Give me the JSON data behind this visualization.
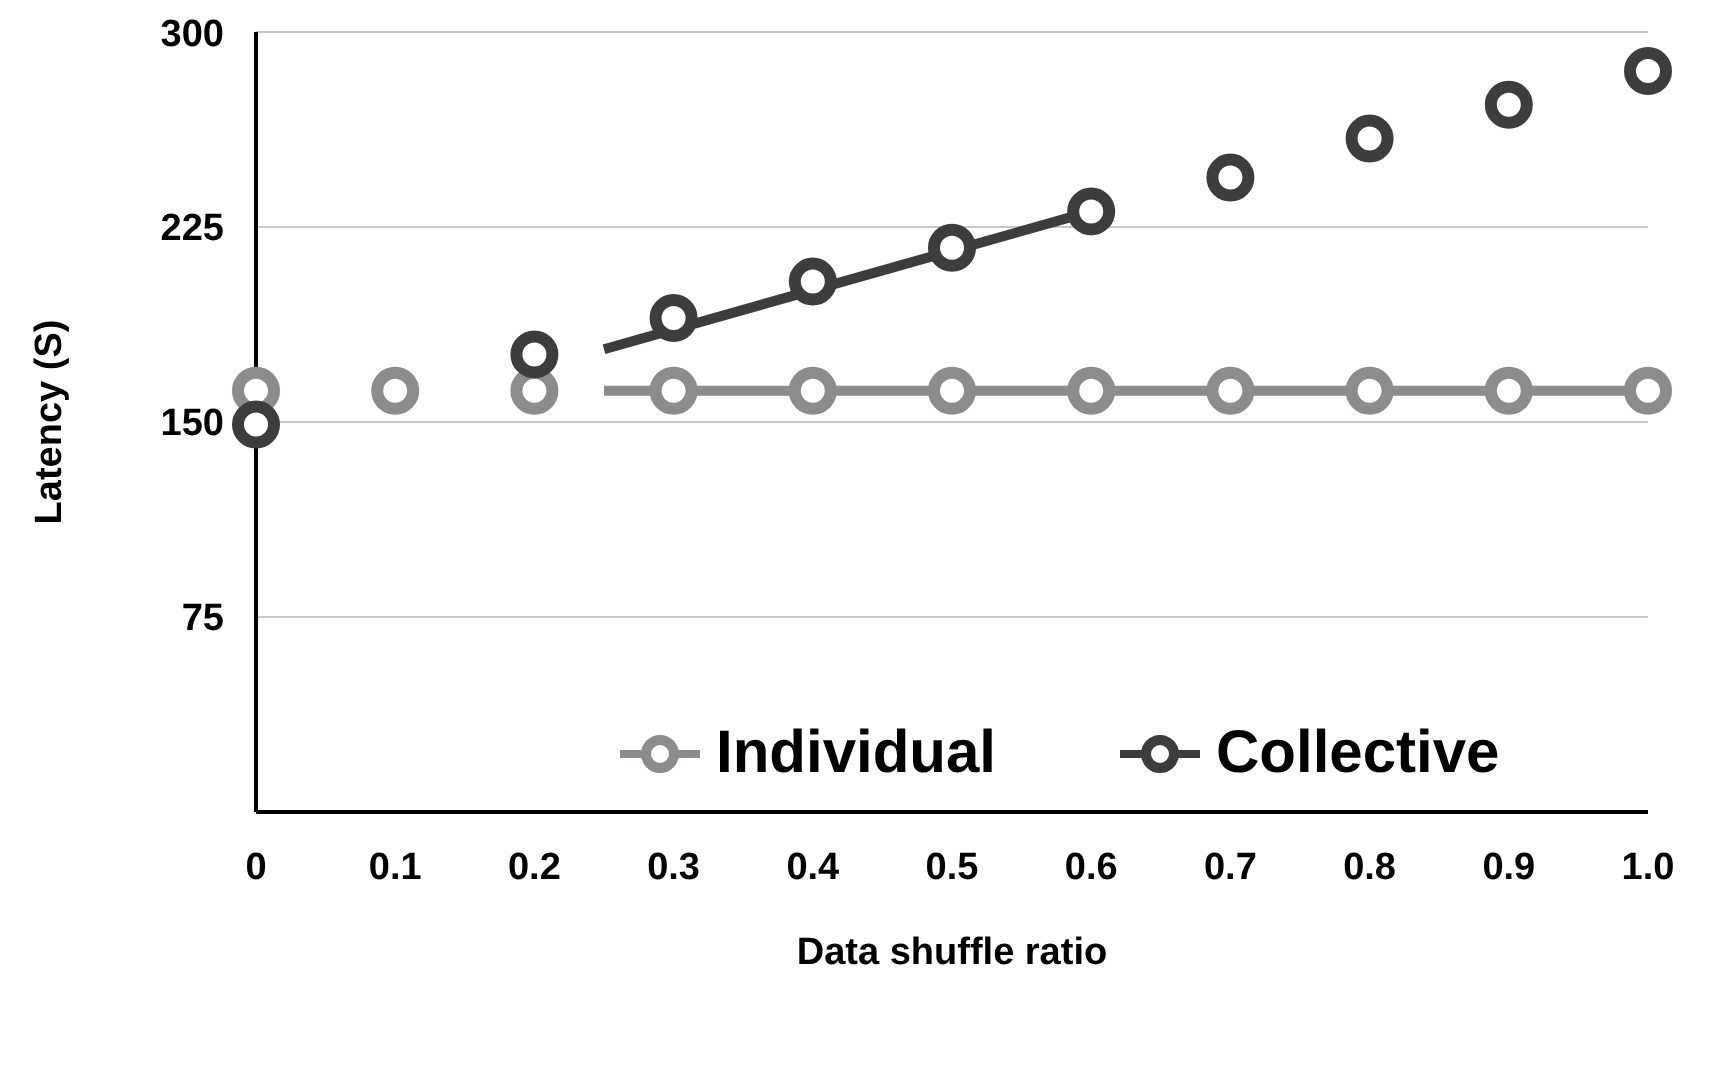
{
  "chart_data": {
    "type": "scatter",
    "xlabel": "Data shuffle ratio",
    "ylabel": "Latency (S)",
    "xlim": [
      0,
      1
    ],
    "xticks": [
      0,
      0.1,
      0.2,
      0.3,
      0.4,
      0.5,
      0.6,
      0.7,
      0.8,
      0.9,
      {
        "value": 1,
        "label": "1.0"
      }
    ],
    "ylim": [
      0,
      300
    ],
    "yticks": [
      {
        "value": 0,
        "label": null
      },
      75,
      150,
      225,
      300
    ],
    "grid": "y",
    "legend": "bottom right",
    "marker": "circle",
    "series": [
      {
        "name": "Individual",
        "color": "#8a8d8a",
        "x": [
          0,
          0.1,
          0.2,
          0.3,
          0.4,
          0.5,
          0.6,
          0.7,
          0.8,
          0.9,
          1
        ],
        "values": [
          162,
          162,
          162,
          162,
          162,
          162,
          162,
          162,
          162,
          162,
          162
        ]
      },
      {
        "type": "line",
        "marker": "none",
        "color": "#8a8d8a",
        "x": [
          0.25,
          1
        ],
        "values": [
          162,
          162
        ]
      },
      {
        "name": "Collective",
        "color": "#3d3d3d",
        "x": [
          0,
          0.1,
          0.2,
          0.3,
          0.4,
          0.5,
          0.6,
          0.7,
          0.8,
          0.9,
          1
        ],
        "values": [
          149,
          null,
          176,
          190,
          204,
          217,
          231,
          244,
          259,
          272,
          285
        ]
      },
      {
        "type": "line",
        "marker": "none",
        "color": "#3d3d3d",
        "x": [
          0.25,
          0.6
        ],
        "values": [
          178,
          231
        ]
      }
    ]
  }
}
